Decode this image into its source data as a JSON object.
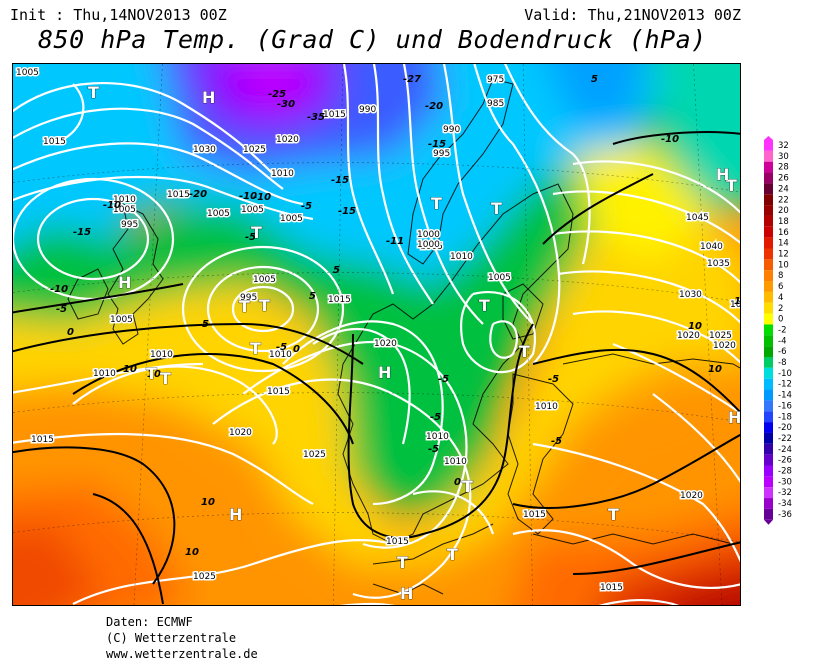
{
  "header": {
    "init": "Init : Thu,14NOV2013 00Z",
    "valid": "Valid: Thu,21NOV2013 00Z",
    "title": "850 hPa Temp. (Grad C) und Bodendruck (hPa)"
  },
  "legend": {
    "ticks": [
      "32",
      "30",
      "28",
      "26",
      "24",
      "22",
      "20",
      "18",
      "16",
      "14",
      "12",
      "10",
      "8",
      "6",
      "4",
      "2",
      "0",
      "-2",
      "-4",
      "-6",
      "-8",
      "-10",
      "-12",
      "-14",
      "-16",
      "-18",
      "-20",
      "-22",
      "-24",
      "-26",
      "-28",
      "-30",
      "-32",
      "-34",
      "-36"
    ],
    "colors": [
      "#ff33ff",
      "#ff66cc",
      "#cc0099",
      "#990066",
      "#660033",
      "#800000",
      "#990000",
      "#b30000",
      "#cc0000",
      "#e21a00",
      "#ee3300",
      "#f65c00",
      "#ff7f00",
      "#ff9900",
      "#ffbb00",
      "#ffdd00",
      "#ffff00",
      "#00dd00",
      "#00c000",
      "#00a800",
      "#00cc66",
      "#00dddd",
      "#00bbff",
      "#0099ff",
      "#3377ff",
      "#2244ff",
      "#0000ee",
      "#0000aa",
      "#3300aa",
      "#6600cc",
      "#9900ff",
      "#bb00ff",
      "#cc33ff",
      "#9900cc",
      "#660099"
    ]
  },
  "map": {
    "pressure_labels": [
      "1005",
      "1015",
      "1030",
      "1025",
      "1020",
      "1010",
      "1015",
      "1015",
      "990",
      "975",
      "985",
      "995",
      "990",
      "1010",
      "1005",
      "1005",
      "995",
      "1005",
      "1005",
      "1000",
      "1005",
      "1010",
      "1000",
      "995",
      "1005",
      "1015",
      "1010",
      "1010",
      "1010",
      "1020",
      "1015",
      "1005",
      "1045",
      "1040",
      "1035",
      "1030",
      "1030",
      "1020",
      "1025",
      "1020",
      "1010",
      "1010",
      "1010",
      "1015",
      "1015",
      "1025",
      "1020",
      "1015",
      "1025",
      "1015",
      "1020",
      "1005"
    ],
    "temp_labels": [
      "-25",
      "-30",
      "-27",
      "-20",
      "-35",
      "-15",
      "-15",
      "-10",
      "-10",
      "-15",
      "-20",
      "-10",
      "-15",
      "-10",
      "-11",
      "-10",
      "-5",
      "-5",
      "-5",
      "-5",
      "-5",
      "-5",
      "0",
      "-5",
      "0",
      "-5",
      "-5",
      "0",
      "5",
      "5",
      "5",
      "5",
      "10",
      "10",
      "10",
      "10",
      "10",
      "10",
      "15"
    ],
    "centers": [
      "H",
      "T",
      "H",
      "T",
      "T",
      "T",
      "T",
      "T",
      "T",
      "T",
      "T",
      "T",
      "H",
      "T",
      "T",
      "H",
      "T",
      "T",
      "H",
      "T",
      "H",
      "T",
      "H"
    ]
  },
  "footer": {
    "line1": "Daten: ECMWF",
    "line2": "(C) Wetterzentrale",
    "line3": "www.wetterzentrale.de"
  }
}
